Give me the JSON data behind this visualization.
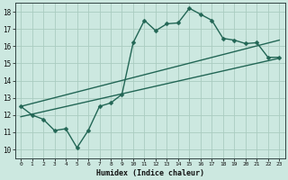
{
  "xlabel": "Humidex (Indice chaleur)",
  "bg_color": "#cce8e0",
  "grid_color": "#aaccc0",
  "line_color": "#226655",
  "xlim": [
    -0.5,
    23.5
  ],
  "ylim": [
    9.5,
    18.5
  ],
  "xticks": [
    0,
    1,
    2,
    3,
    4,
    5,
    6,
    7,
    8,
    9,
    10,
    11,
    12,
    13,
    14,
    15,
    16,
    17,
    18,
    19,
    20,
    21,
    22,
    23
  ],
  "yticks": [
    10,
    11,
    12,
    13,
    14,
    15,
    16,
    17,
    18
  ],
  "series1_x": [
    0,
    1,
    2,
    3,
    4,
    5,
    6,
    7,
    8,
    9,
    10,
    11,
    12,
    13,
    14,
    15,
    16,
    17,
    18,
    19,
    20,
    21,
    22,
    23
  ],
  "series1_y": [
    12.5,
    12.0,
    11.75,
    11.1,
    11.2,
    10.1,
    11.1,
    12.5,
    12.7,
    13.2,
    16.2,
    17.5,
    16.9,
    17.3,
    17.35,
    18.2,
    17.85,
    17.5,
    16.45,
    16.35,
    16.15,
    16.2,
    15.35,
    15.35
  ],
  "trend1_x": [
    0,
    23
  ],
  "trend1_y": [
    12.5,
    16.35
  ],
  "trend2_x": [
    0,
    23
  ],
  "trend2_y": [
    11.9,
    15.3
  ],
  "marker": "D",
  "markersize": 2.5,
  "linewidth": 1.0
}
